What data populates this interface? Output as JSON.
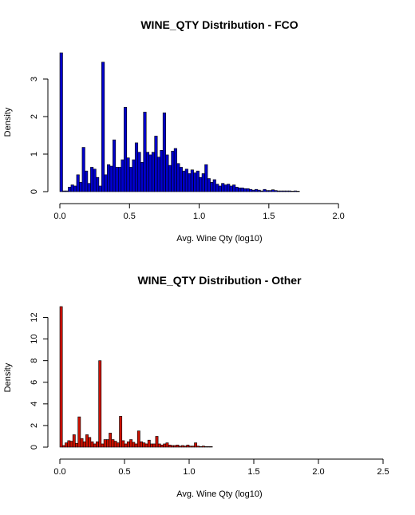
{
  "chart_data": [
    {
      "type": "bar",
      "title": "WINE_QTY Distribution - FCO",
      "xlabel": "Avg. Wine Qty (log10)",
      "ylabel": "Density",
      "bar_color": "#0000cc",
      "xlim": [
        0,
        2.28
      ],
      "ylim": [
        0,
        3.7
      ],
      "x_ticks": [
        0.0,
        0.5,
        1.0,
        1.5,
        2.0
      ],
      "x_tick_labels": [
        "0.0",
        "0.5",
        "1.0",
        "1.5",
        "2.0"
      ],
      "y_ticks": [
        0,
        1,
        2,
        3
      ],
      "y_tick_labels": [
        "0",
        "1",
        "2",
        "3"
      ],
      "bin_width": 0.02,
      "x": [
        0.01,
        0.03,
        0.05,
        0.07,
        0.09,
        0.11,
        0.13,
        0.15,
        0.17,
        0.19,
        0.21,
        0.23,
        0.25,
        0.27,
        0.29,
        0.31,
        0.33,
        0.35,
        0.37,
        0.39,
        0.41,
        0.43,
        0.45,
        0.47,
        0.49,
        0.51,
        0.53,
        0.55,
        0.57,
        0.59,
        0.61,
        0.63,
        0.65,
        0.67,
        0.69,
        0.71,
        0.73,
        0.75,
        0.77,
        0.79,
        0.81,
        0.83,
        0.85,
        0.87,
        0.89,
        0.91,
        0.93,
        0.95,
        0.97,
        0.99,
        1.01,
        1.03,
        1.05,
        1.07,
        1.09,
        1.11,
        1.13,
        1.15,
        1.17,
        1.19,
        1.21,
        1.23,
        1.25,
        1.27,
        1.29,
        1.31,
        1.33,
        1.35,
        1.37,
        1.39,
        1.41,
        1.43,
        1.45,
        1.47,
        1.49,
        1.51,
        1.53,
        1.55,
        1.57,
        1.59,
        1.61,
        1.63,
        1.65,
        1.67,
        1.69,
        1.71
      ],
      "values": [
        3.7,
        0.02,
        0.02,
        0.12,
        0.18,
        0.15,
        0.45,
        0.25,
        1.18,
        0.55,
        0.22,
        0.65,
        0.6,
        0.38,
        0.15,
        3.45,
        0.45,
        0.72,
        0.68,
        1.38,
        0.65,
        0.65,
        0.85,
        2.25,
        0.9,
        0.65,
        0.85,
        1.3,
        1.05,
        0.78,
        2.12,
        1.05,
        0.98,
        1.05,
        1.48,
        0.92,
        1.1,
        2.1,
        0.98,
        0.7,
        1.08,
        1.15,
        0.75,
        0.65,
        0.55,
        0.6,
        0.48,
        0.58,
        0.5,
        0.55,
        0.38,
        0.48,
        0.72,
        0.35,
        0.25,
        0.32,
        0.2,
        0.15,
        0.22,
        0.18,
        0.2,
        0.15,
        0.18,
        0.12,
        0.1,
        0.1,
        0.08,
        0.08,
        0.06,
        0.04,
        0.06,
        0.04,
        0.02,
        0.06,
        0.03,
        0.03,
        0.05,
        0.03,
        0.02,
        0.02,
        0.02,
        0.02,
        0.02,
        0.01,
        0.02,
        0.01
      ]
    },
    {
      "type": "bar",
      "title": "WINE_QTY Distribution - Other",
      "xlabel": "Avg. Wine Qty (log10)",
      "ylabel": "Density",
      "bar_color": "#cc1100",
      "xlim": [
        0,
        2.5
      ],
      "ylim": [
        0,
        13
      ],
      "x_ticks": [
        0.0,
        0.5,
        1.0,
        1.5,
        2.0,
        2.5
      ],
      "x_tick_labels": [
        "0.0",
        "0.5",
        "1.0",
        "1.5",
        "2.0",
        "2.5"
      ],
      "y_ticks": [
        0,
        2,
        4,
        6,
        8,
        10,
        12
      ],
      "y_tick_labels": [
        "0",
        "2",
        "4",
        "6",
        "8",
        "10",
        "12"
      ],
      "bin_width": 0.02,
      "x": [
        0.01,
        0.03,
        0.05,
        0.07,
        0.09,
        0.11,
        0.13,
        0.15,
        0.17,
        0.19,
        0.21,
        0.23,
        0.25,
        0.27,
        0.29,
        0.31,
        0.33,
        0.35,
        0.37,
        0.39,
        0.41,
        0.43,
        0.45,
        0.47,
        0.49,
        0.51,
        0.53,
        0.55,
        0.57,
        0.59,
        0.61,
        0.63,
        0.65,
        0.67,
        0.69,
        0.71,
        0.73,
        0.75,
        0.77,
        0.79,
        0.81,
        0.83,
        0.85,
        0.87,
        0.89,
        0.91,
        0.93,
        0.95,
        0.97,
        0.99,
        1.01,
        1.03,
        1.05,
        1.07,
        1.09,
        1.11,
        1.13,
        1.15,
        1.17
      ],
      "values": [
        13.0,
        0.15,
        0.4,
        0.6,
        0.55,
        1.15,
        0.35,
        2.8,
        0.8,
        0.5,
        1.15,
        0.9,
        0.5,
        0.3,
        0.5,
        8.0,
        0.3,
        0.7,
        0.7,
        1.3,
        0.7,
        0.55,
        0.4,
        2.85,
        0.6,
        0.3,
        0.5,
        0.7,
        0.45,
        0.3,
        1.5,
        0.5,
        0.4,
        0.3,
        0.65,
        0.3,
        0.3,
        1.0,
        0.3,
        0.2,
        0.3,
        0.4,
        0.2,
        0.15,
        0.15,
        0.2,
        0.1,
        0.15,
        0.1,
        0.2,
        0.1,
        0.1,
        0.4,
        0.1,
        0.05,
        0.1,
        0.05,
        0.05,
        0.05
      ]
    }
  ]
}
